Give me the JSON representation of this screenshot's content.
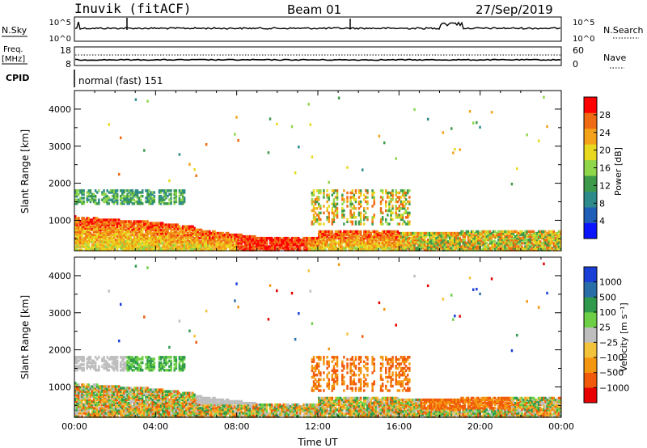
{
  "header": {
    "station": "Inuvik (fitACF)",
    "beam": "Beam 01",
    "date": "27/Sep/2019"
  },
  "colors": {
    "power": [
      "#0a14ff",
      "#1f5fb8",
      "#2e8b8b",
      "#3c9a4a",
      "#8fd64a",
      "#e8d91e",
      "#f4a21a",
      "#ef6a12",
      "#ff0000"
    ],
    "velocity": [
      "#e80000",
      "#f05a0a",
      "#f4960f",
      "#f2c23a",
      "#bebebe",
      "#6ccf45",
      "#2f9a4d",
      "#2a6ea8",
      "#1a3fd6"
    ]
  },
  "chart_data": [
    {
      "type": "line",
      "name": "noise-panel",
      "left_label": "N.Sky",
      "right_label": "N.Search",
      "left_ticks": [
        "10^5",
        "10^0"
      ],
      "right_ticks": [
        "10^5",
        "10^0"
      ]
    },
    {
      "type": "line",
      "name": "frequency-panel",
      "left_label": "Freq.",
      "left_unit": "[MHz]",
      "left_ticks": [
        "18",
        "8"
      ],
      "right_label": "Nave",
      "right_ticks": [
        "60",
        "0"
      ],
      "cpid_label": "CPID",
      "cpid_text": "normal (fast) 151"
    },
    {
      "type": "heatmap",
      "name": "power-panel",
      "ylabel": "Slant Range [km]",
      "y_ticks": [
        "4000",
        "3000",
        "2000",
        "1000"
      ],
      "ylim": [
        180,
        4500
      ],
      "colorbar_label": "Power [dB]",
      "colorbar_ticks": [
        "28",
        "24",
        "20",
        "16",
        "12",
        "8",
        "4"
      ],
      "clim": [
        0,
        32
      ]
    },
    {
      "type": "heatmap",
      "name": "velocity-panel",
      "ylabel": "Slant Range [km]",
      "y_ticks": [
        "4000",
        "3000",
        "2000",
        "1000"
      ],
      "ylim": [
        180,
        4500
      ],
      "colorbar_label": "Velocity [m s⁻¹]",
      "colorbar_ticks": [
        "1000",
        "500",
        "100",
        "25",
        "−25",
        "−100",
        "−500",
        "−1000"
      ],
      "x_ticks": [
        "00:00",
        "04:00",
        "08:00",
        "12:00",
        "16:00",
        "20:00",
        "00:00"
      ],
      "xlabel": "Time UT"
    }
  ]
}
